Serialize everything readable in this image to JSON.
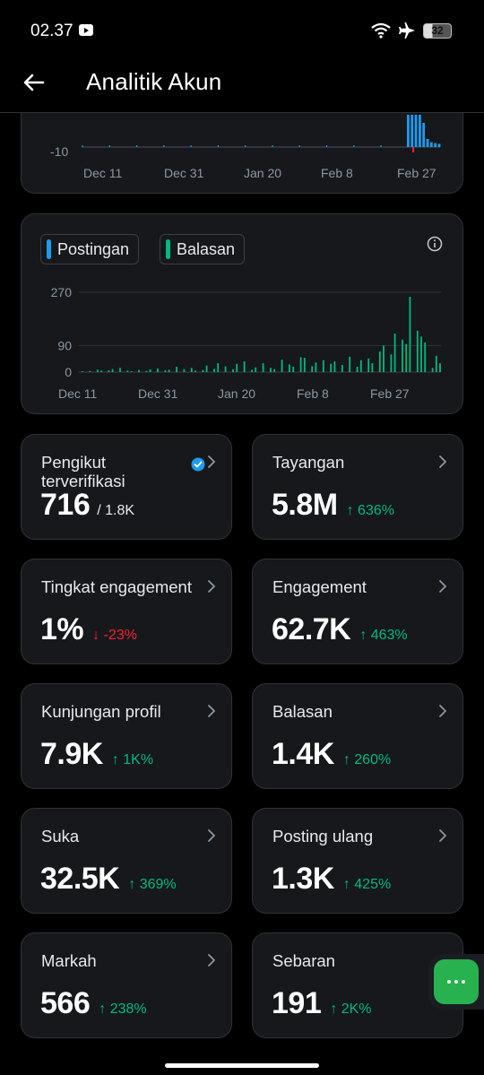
{
  "status_bar": {
    "time": "02.37",
    "battery": "32"
  },
  "header": {
    "title": "Analitik Akun"
  },
  "chart_top": {
    "y_tick": "-10",
    "x_ticks": [
      "Dec 11",
      "Dec 31",
      "Jan 20",
      "Feb 8",
      "Feb 27"
    ]
  },
  "chart_bottom": {
    "legend": [
      {
        "label": "Postingan",
        "color": "#1d9bf0"
      },
      {
        "label": "Balasan",
        "color": "#00ba7c"
      }
    ],
    "y_ticks": [
      "270",
      "90",
      "0"
    ],
    "x_ticks": [
      "Dec 11",
      "Dec 31",
      "Jan 20",
      "Feb 8",
      "Feb 27"
    ]
  },
  "chart_data": [
    {
      "type": "bar",
      "series": [
        {
          "name": "Postingan",
          "color": "#1d9bf0"
        }
      ],
      "x_ticks": [
        "Dec 11",
        "Dec 31",
        "Jan 20",
        "Feb 8",
        "Feb 27"
      ],
      "y_ticks": [
        -10
      ],
      "note_values": [
        0,
        0,
        0,
        0,
        0,
        0,
        0,
        0,
        0,
        0,
        0,
        0,
        0,
        0,
        0,
        0,
        0,
        0,
        0,
        0,
        0,
        0,
        0,
        0,
        0,
        0,
        0,
        0,
        0,
        0,
        0,
        0,
        0,
        0,
        0,
        0,
        0,
        0,
        0,
        0,
        0,
        0,
        0,
        0,
        0,
        0,
        0,
        0,
        0,
        0,
        0,
        0,
        0,
        0,
        0,
        0,
        0,
        0,
        0,
        0,
        0,
        0,
        0,
        0,
        0,
        0,
        0,
        0,
        0,
        0,
        0,
        0,
        0,
        0,
        0,
        0,
        0,
        0,
        0,
        0,
        0,
        0,
        0,
        0,
        80,
        80,
        80,
        80,
        60,
        20,
        12,
        10,
        8
      ]
    },
    {
      "type": "bar",
      "series": [
        {
          "name": "Balasan",
          "color": "#00ba7c"
        }
      ],
      "x_ticks": [
        "Dec 11",
        "Dec 31",
        "Jan 20",
        "Feb 8",
        "Feb 27"
      ],
      "y_ticks": [
        0,
        90,
        270
      ],
      "ylim": [
        0,
        300
      ],
      "values": [
        3,
        0,
        4,
        0,
        8,
        5,
        0,
        6,
        10,
        0,
        14,
        0,
        5,
        3,
        0,
        7,
        0,
        4,
        9,
        0,
        12,
        0,
        6,
        8,
        0,
        18,
        0,
        10,
        0,
        14,
        5,
        0,
        7,
        22,
        0,
        11,
        30,
        0,
        19,
        0,
        9,
        28,
        0,
        36,
        0,
        8,
        16,
        0,
        30,
        0,
        14,
        10,
        0,
        42,
        0,
        26,
        18,
        0,
        50,
        48,
        0,
        20,
        32,
        0,
        40,
        0,
        28,
        36,
        0,
        24,
        0,
        52,
        0,
        18,
        40,
        0,
        46,
        30,
        0,
        70,
        90,
        0,
        60,
        130,
        0,
        110,
        95,
        255,
        0,
        140,
        120,
        100,
        0,
        14,
        55,
        30
      ]
    }
  ],
  "stats": [
    {
      "label": "Pengikut terverifikasi",
      "value": "716",
      "sub": "/ 1.8K",
      "change": "",
      "direction": ""
    },
    {
      "label": "Tayangan",
      "value": "5.8M",
      "sub": "",
      "change": "636%",
      "direction": "up"
    },
    {
      "label": "Tingkat engagement",
      "value": "1%",
      "sub": "",
      "change": "-23%",
      "direction": "down"
    },
    {
      "label": "Engagement",
      "value": "62.7K",
      "sub": "",
      "change": "463%",
      "direction": "up"
    },
    {
      "label": "Kunjungan profil",
      "value": "7.9K",
      "sub": "",
      "change": "1K%",
      "direction": "up"
    },
    {
      "label": "Balasan",
      "value": "1.4K",
      "sub": "",
      "change": "260%",
      "direction": "up"
    },
    {
      "label": "Suka",
      "value": "32.5K",
      "sub": "",
      "change": "369%",
      "direction": "up"
    },
    {
      "label": "Posting ulang",
      "value": "1.3K",
      "sub": "",
      "change": "425%",
      "direction": "up"
    },
    {
      "label": "Markah",
      "value": "566",
      "sub": "",
      "change": "238%",
      "direction": "up"
    },
    {
      "label": "Sebaran",
      "value": "191",
      "sub": "",
      "change": "2K%",
      "direction": "up"
    }
  ]
}
